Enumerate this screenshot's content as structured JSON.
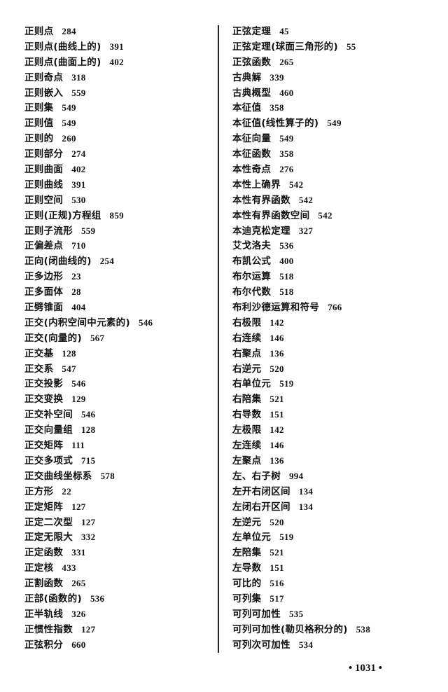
{
  "left_column": [
    [
      "正则点",
      "284"
    ],
    [
      "正则点(曲线上的)",
      "391"
    ],
    [
      "正则点(曲面上的)",
      "402"
    ],
    [
      "正则奇点",
      "318"
    ],
    [
      "正则嵌入",
      "559"
    ],
    [
      "正则集",
      "549"
    ],
    [
      "正则值",
      "549"
    ],
    [
      "正则的",
      "260"
    ],
    [
      "正则部分",
      "274"
    ],
    [
      "正则曲面",
      "402"
    ],
    [
      "正则曲线",
      "391"
    ],
    [
      "正则空间",
      "530"
    ],
    [
      "正则(正规)方程组",
      "859"
    ],
    [
      "正则子流形",
      "559"
    ],
    [
      "正偏差点",
      "710"
    ],
    [
      "正向(闭曲线的)",
      "254"
    ],
    [
      "正多边形",
      "23"
    ],
    [
      "正多面体",
      "28"
    ],
    [
      "正劈锥面",
      "404"
    ],
    [
      "正交(内积空间中元素的)",
      "546"
    ],
    [
      "正交(向量的)",
      "567"
    ],
    [
      "正交基",
      "128"
    ],
    [
      "正交系",
      "547"
    ],
    [
      "正交投影",
      "546"
    ],
    [
      "正交变换",
      "129"
    ],
    [
      "正交补空间",
      "546"
    ],
    [
      "正交向量组",
      "128"
    ],
    [
      "正交矩阵",
      "111"
    ],
    [
      "正交多项式",
      "715"
    ],
    [
      "正交曲线坐标系",
      "578"
    ],
    [
      "正方形",
      "22"
    ],
    [
      "正定矩阵",
      "127"
    ],
    [
      "正定二次型",
      "127"
    ],
    [
      "正定无限大",
      "332"
    ],
    [
      "正定函数",
      "331"
    ],
    [
      "正定核",
      "433"
    ],
    [
      "正割函数",
      "265"
    ],
    [
      "正部(函数的)",
      "536"
    ],
    [
      "正半轨线",
      "326"
    ],
    [
      "正惯性指数",
      "127"
    ],
    [
      "正弦积分",
      "660"
    ]
  ],
  "right_column": [
    [
      "正弦定理",
      "45"
    ],
    [
      "正弦定理(球面三角形的)",
      "55"
    ],
    [
      "正弦函数",
      "265"
    ],
    [
      "古典解",
      "339"
    ],
    [
      "古典概型",
      "460"
    ],
    [
      "本征值",
      "358"
    ],
    [
      "本征值(线性算子的)",
      "549"
    ],
    [
      "本征向量",
      "549"
    ],
    [
      "本征函数",
      "358"
    ],
    [
      "本性奇点",
      "276"
    ],
    [
      "本性上确界",
      "542"
    ],
    [
      "本性有界函数",
      "542"
    ],
    [
      "本性有界函数空间",
      "542"
    ],
    [
      "本迪克松定理",
      "327"
    ],
    [
      "艾戈洛夫",
      "536"
    ],
    [
      "布凯公式",
      "400"
    ],
    [
      "布尔运算",
      "518"
    ],
    [
      "布尔代数",
      "518"
    ],
    [
      "布利沙德运算和符号",
      "766"
    ],
    [
      "右极限",
      "142"
    ],
    [
      "右连续",
      "146"
    ],
    [
      "右聚点",
      "136"
    ],
    [
      "右逆元",
      "520"
    ],
    [
      "右单位元",
      "519"
    ],
    [
      "右陪集",
      "521"
    ],
    [
      "右导数",
      "151"
    ],
    [
      "左极限",
      "142"
    ],
    [
      "左连续",
      "146"
    ],
    [
      "左聚点",
      "136"
    ],
    [
      "左、右子树",
      "994"
    ],
    [
      "左开右闭区间",
      "134"
    ],
    [
      "左闭右开区间",
      "134"
    ],
    [
      "左逆元",
      "520"
    ],
    [
      "左单位元",
      "519"
    ],
    [
      "左陪集",
      "521"
    ],
    [
      "左导数",
      "151"
    ],
    [
      "可比的",
      "516"
    ],
    [
      "可列集",
      "517"
    ],
    [
      "可列可加性",
      "535"
    ],
    [
      "可列可加性(勒贝格积分的)",
      "538"
    ],
    [
      "可列次可加性",
      "534"
    ]
  ],
  "page_number": "• 1031 •"
}
